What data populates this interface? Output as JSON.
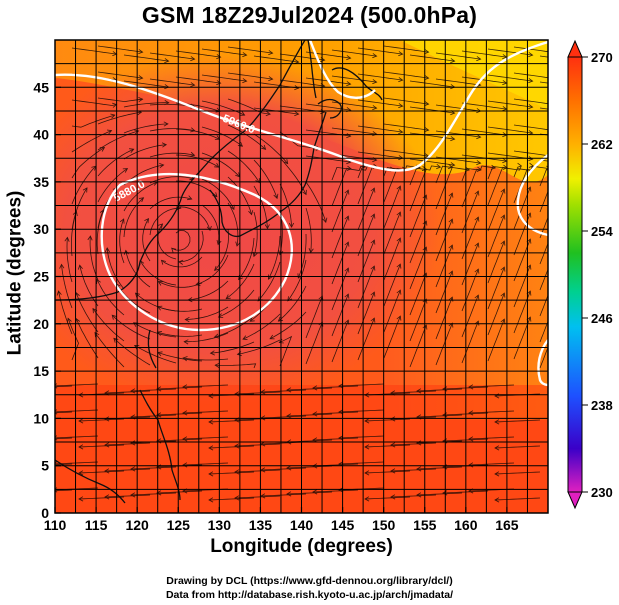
{
  "title": "GSM 18Z29Jul2024 (500.0hPa)",
  "chart_data": {
    "type": "heatmap",
    "title": "GSM 18Z29Jul2024 (500.0hPa)",
    "xlabel": "Longitude (degrees)",
    "ylabel": "Latitude  (degrees)",
    "xlim": [
      110,
      170
    ],
    "ylim": [
      0,
      50
    ],
    "x_ticks": [
      110,
      115,
      120,
      125,
      130,
      135,
      140,
      145,
      150,
      155,
      160,
      165
    ],
    "y_ticks": [
      0,
      5,
      10,
      15,
      20,
      25,
      30,
      35,
      40,
      45
    ],
    "grid": true,
    "colorbar": {
      "ticks": [
        230,
        238,
        246,
        254,
        262,
        270
      ],
      "range": [
        230,
        270
      ],
      "colors": [
        "#e020c0",
        "#3a00c8",
        "#1e50ff",
        "#00c0f0",
        "#00d090",
        "#20c020",
        "#a0e000",
        "#f0f000",
        "#ffb000",
        "#ff7000",
        "#ff3010"
      ]
    },
    "contours": [
      {
        "label": "5960.0"
      },
      {
        "label": "5880.0"
      }
    ],
    "overlays": [
      "streamlines",
      "coastlines"
    ]
  },
  "credits": {
    "line1": "Drawing by DCL (https://www.gfd-dennou.org/library/dcl/)",
    "line2": "Data from http://database.rish.kyoto-u.ac.jp/arch/jmadata/"
  }
}
